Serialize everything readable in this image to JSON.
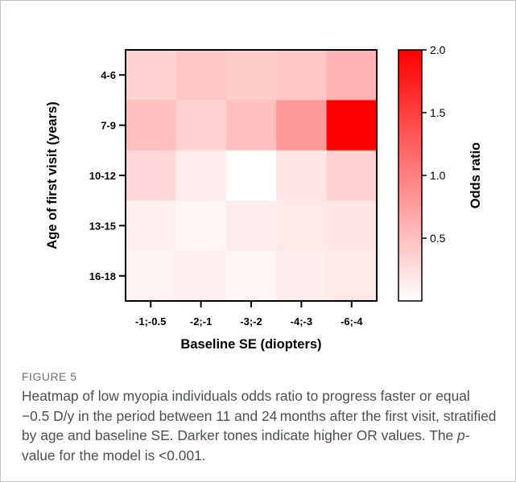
{
  "chart_data": {
    "type": "heatmap",
    "x_categories": [
      "-1;-0.5",
      "-2;-1",
      "-3;-2",
      "-4;-3",
      "-6;-4"
    ],
    "y_categories": [
      "4-6",
      "7-9",
      "10-12",
      "13-15",
      "16-18"
    ],
    "values": [
      [
        0.35,
        0.45,
        0.4,
        0.45,
        0.6
      ],
      [
        0.5,
        0.35,
        0.5,
        0.8,
        2.0
      ],
      [
        0.3,
        0.15,
        0.0,
        0.2,
        0.35
      ],
      [
        0.12,
        0.08,
        0.15,
        0.18,
        0.2
      ],
      [
        0.1,
        0.12,
        0.08,
        0.15,
        0.18
      ]
    ],
    "xlabel": "Baseline SE (diopters)",
    "ylabel": "Age of first visit (years)",
    "colorbar": {
      "label": "Odds ratio",
      "min": 0,
      "max": 2.0,
      "ticks": [
        "0.5",
        "1.0",
        "1.5",
        "2.0"
      ],
      "tick_values": [
        0.5,
        1.0,
        1.5,
        2.0
      ],
      "color_low": "#ffffff",
      "color_high": "#ff0000"
    }
  },
  "figure": {
    "label": "FIGURE 5",
    "caption_part1": "Heatmap of low myopia individuals odds ratio to progress faster or equal −0.5 D/y in the period between 11 and 24 months after the first visit, stratified by age and baseline SE. Darker tones indicate higher OR values. The ",
    "caption_p": "p",
    "caption_part2": "-value for the model is <0.001."
  }
}
